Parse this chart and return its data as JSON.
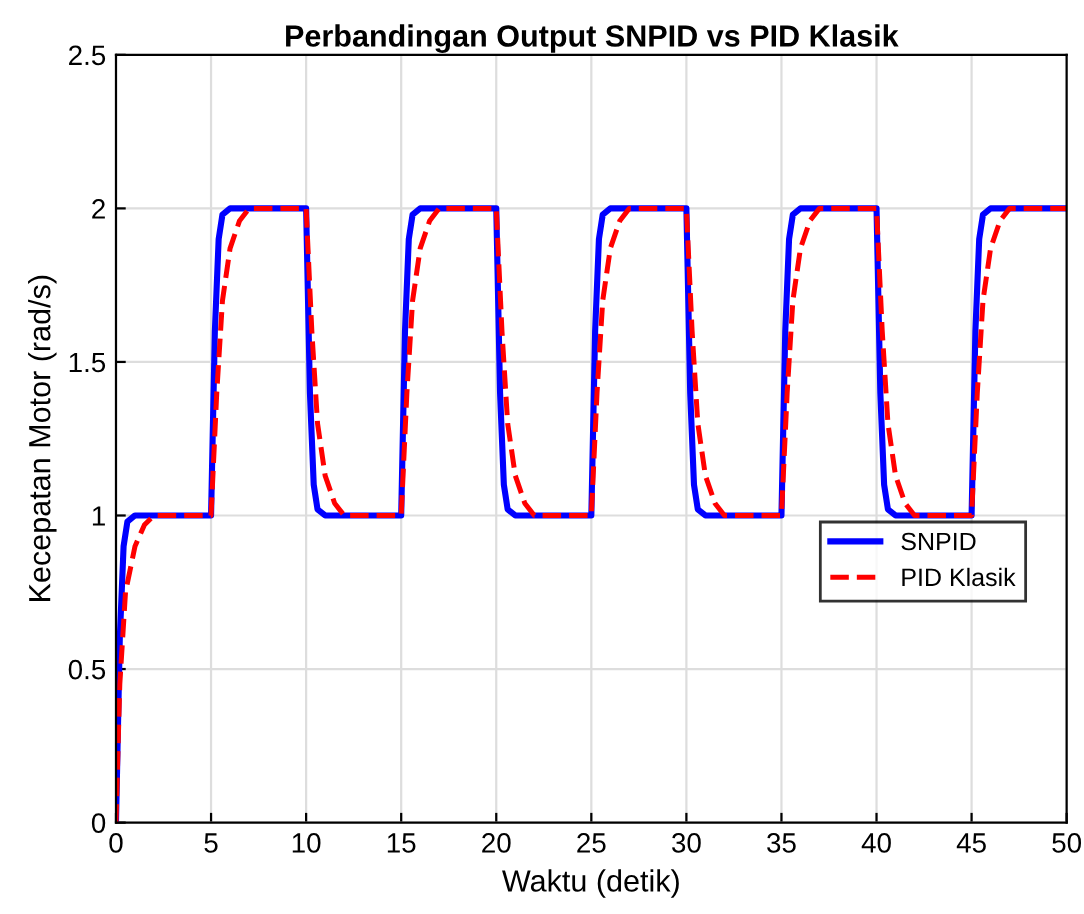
{
  "chart_data": {
    "type": "line",
    "title": "Perbandingan Output SNPID vs PID Klasik",
    "xlabel": "Waktu (detik)",
    "ylabel": "Kecepatan Motor (rad/s)",
    "xlim": [
      0,
      50
    ],
    "ylim": [
      0,
      2.5
    ],
    "xticks": [
      0,
      5,
      10,
      15,
      20,
      25,
      30,
      35,
      40,
      45,
      50
    ],
    "yticks": [
      0,
      0.5,
      1,
      1.5,
      2,
      2.5
    ],
    "grid": true,
    "legend": "right",
    "series": [
      {
        "name": "SNPID",
        "color": "#0000ff",
        "line_style": "solid",
        "x": [
          0,
          0.2,
          0.4,
          0.6,
          1,
          5,
          5.2,
          5.4,
          5.6,
          6,
          10,
          10.2,
          10.4,
          10.6,
          11,
          15,
          15.2,
          15.4,
          15.6,
          16,
          20,
          20.2,
          20.4,
          20.6,
          21,
          25,
          25.2,
          25.4,
          25.6,
          26,
          30,
          30.2,
          30.4,
          30.6,
          31,
          35,
          35.2,
          35.4,
          35.6,
          36,
          40,
          40.2,
          40.4,
          40.6,
          41,
          45,
          45.2,
          45.4,
          45.6,
          46,
          50
        ],
        "values": [
          0,
          0.6,
          0.9,
          0.98,
          1,
          1,
          1.6,
          1.9,
          1.98,
          2,
          2,
          1.4,
          1.1,
          1.02,
          1,
          1,
          1.6,
          1.9,
          1.98,
          2,
          2,
          1.4,
          1.1,
          1.02,
          1,
          1,
          1.6,
          1.9,
          1.98,
          2,
          2,
          1.4,
          1.1,
          1.02,
          1,
          1,
          1.6,
          1.9,
          1.98,
          2,
          2,
          1.4,
          1.1,
          1.02,
          1,
          1,
          1.6,
          1.9,
          1.98,
          2,
          2
        ]
      },
      {
        "name": "PID Klasik",
        "color": "#ff0000",
        "line_style": "dashed",
        "x": [
          0,
          0.2,
          0.5,
          1,
          1.5,
          2,
          5,
          5.3,
          5.6,
          6,
          6.5,
          7,
          10,
          10.3,
          10.6,
          11,
          11.5,
          12,
          15,
          15.3,
          15.6,
          16,
          16.5,
          17,
          20,
          20.3,
          20.6,
          21,
          21.5,
          22,
          25,
          25.3,
          25.6,
          26,
          26.5,
          27,
          30,
          30.3,
          30.6,
          31,
          31.5,
          32,
          35,
          35.3,
          35.6,
          36,
          36.5,
          37,
          40,
          40.3,
          40.6,
          41,
          41.5,
          42,
          45,
          45.3,
          45.6,
          46,
          46.5,
          47,
          50
        ],
        "values": [
          0,
          0.45,
          0.75,
          0.9,
          0.97,
          1,
          1,
          1.4,
          1.7,
          1.87,
          1.96,
          2,
          2,
          1.6,
          1.3,
          1.13,
          1.04,
          1,
          1,
          1.4,
          1.7,
          1.87,
          1.96,
          2,
          2,
          1.6,
          1.3,
          1.13,
          1.04,
          1,
          1,
          1.4,
          1.7,
          1.87,
          1.96,
          2,
          2,
          1.6,
          1.3,
          1.13,
          1.04,
          1,
          1,
          1.4,
          1.7,
          1.87,
          1.96,
          2,
          2,
          1.6,
          1.3,
          1.13,
          1.04,
          1,
          1,
          1.4,
          1.7,
          1.87,
          1.96,
          2,
          2
        ]
      }
    ]
  }
}
